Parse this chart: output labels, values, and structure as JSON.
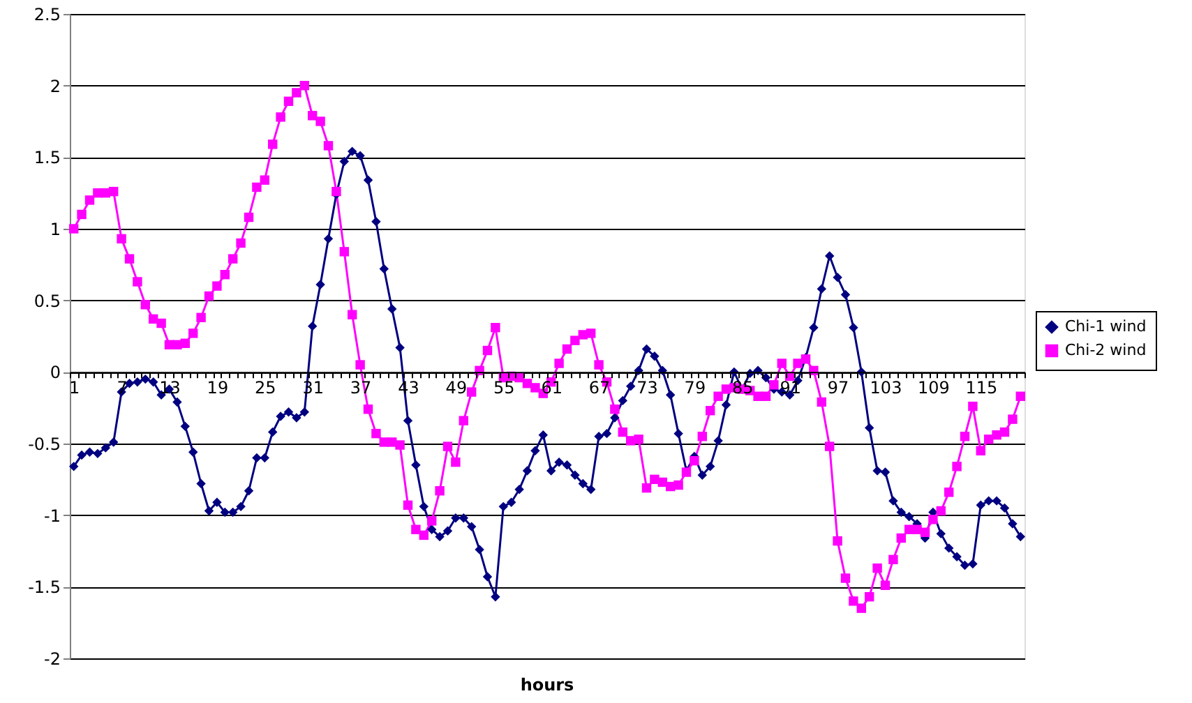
{
  "chart_data": {
    "type": "line",
    "xlabel": "hours",
    "categories": [
      "1",
      null,
      null,
      null,
      null,
      null,
      "7",
      null,
      null,
      null,
      null,
      null,
      "13",
      null,
      null,
      null,
      null,
      null,
      "19",
      null,
      null,
      null,
      null,
      null,
      "25",
      null,
      null,
      null,
      null,
      null,
      "31",
      null,
      null,
      null,
      null,
      null,
      "37",
      null,
      null,
      null,
      null,
      null,
      "43",
      null,
      null,
      null,
      null,
      null,
      "49",
      null,
      null,
      null,
      null,
      null,
      "55",
      null,
      null,
      null,
      null,
      null,
      "61",
      null,
      null,
      null,
      null,
      null,
      "67",
      null,
      null,
      null,
      null,
      null,
      "73",
      null,
      null,
      null,
      null,
      null,
      "79",
      null,
      null,
      null,
      null,
      null,
      "85",
      null,
      null,
      null,
      null,
      null,
      "91",
      null,
      null,
      null,
      null,
      null,
      "97",
      null,
      null,
      null,
      null,
      null,
      "103",
      null,
      null,
      null,
      null,
      null,
      "109",
      null,
      null,
      null,
      null,
      null,
      "115",
      null,
      null,
      null,
      null,
      null
    ],
    "series": [
      {
        "name": "Chi-1 wind",
        "color": "#000080",
        "marker": "diamond",
        "values": [
          -0.66,
          -0.58,
          -0.56,
          -0.57,
          -0.53,
          -0.49,
          -0.14,
          -0.08,
          -0.07,
          -0.05,
          -0.07,
          -0.16,
          -0.12,
          -0.21,
          -0.38,
          -0.56,
          -0.78,
          -0.97,
          -0.91,
          -0.98,
          -0.98,
          -0.94,
          -0.83,
          -0.6,
          -0.6,
          -0.42,
          -0.31,
          -0.28,
          -0.32,
          -0.28,
          0.32,
          0.61,
          0.93,
          1.24,
          1.47,
          1.54,
          1.51,
          1.34,
          1.05,
          0.72,
          0.44,
          0.17,
          -0.34,
          -0.65,
          -0.94,
          -1.1,
          -1.15,
          -1.11,
          -1.02,
          -1.02,
          -1.08,
          -1.24,
          -1.43,
          -1.57,
          -0.94,
          -0.91,
          -0.82,
          -0.69,
          -0.55,
          -0.44,
          -0.69,
          -0.63,
          -0.65,
          -0.72,
          -0.78,
          -0.82,
          -0.45,
          -0.43,
          -0.32,
          -0.2,
          -0.1,
          0.01,
          0.16,
          0.11,
          0.01,
          -0.16,
          -0.43,
          -0.69,
          -0.59,
          -0.72,
          -0.66,
          -0.48,
          -0.23,
          0.0,
          -0.12,
          -0.01,
          0.01,
          -0.04,
          -0.12,
          -0.14,
          -0.16,
          -0.06,
          0.1,
          0.31,
          0.58,
          0.81,
          0.66,
          0.54,
          0.31,
          0.0,
          -0.39,
          -0.69,
          -0.7,
          -0.9,
          -0.98,
          -1.01,
          -1.06,
          -1.16,
          -0.98,
          -1.13,
          -1.23,
          -1.29,
          -1.35,
          -1.34,
          -0.93,
          -0.9,
          -0.9,
          -0.95,
          -1.06,
          -1.15
        ]
      },
      {
        "name": "Chi-2 wind",
        "color": "#ff00ff",
        "marker": "square",
        "values": [
          1.0,
          1.1,
          1.2,
          1.25,
          1.25,
          1.26,
          0.93,
          0.79,
          0.63,
          0.47,
          0.37,
          0.34,
          0.19,
          0.19,
          0.2,
          0.27,
          0.38,
          0.53,
          0.6,
          0.68,
          0.79,
          0.9,
          1.08,
          1.29,
          1.34,
          1.59,
          1.78,
          1.89,
          1.95,
          2.0,
          1.79,
          1.75,
          1.58,
          1.26,
          0.84,
          0.4,
          0.05,
          -0.26,
          -0.43,
          -0.49,
          -0.49,
          -0.51,
          -0.93,
          -1.1,
          -1.14,
          -1.04,
          -0.83,
          -0.52,
          -0.63,
          -0.34,
          -0.14,
          0.01,
          0.15,
          0.31,
          -0.04,
          -0.03,
          -0.04,
          -0.08,
          -0.11,
          -0.15,
          -0.07,
          0.06,
          0.16,
          0.22,
          0.26,
          0.27,
          0.05,
          -0.07,
          -0.26,
          -0.42,
          -0.48,
          -0.47,
          -0.81,
          -0.75,
          -0.77,
          -0.8,
          -0.79,
          -0.7,
          -0.62,
          -0.45,
          -0.27,
          -0.17,
          -0.12,
          -0.11,
          -0.12,
          -0.13,
          -0.17,
          -0.17,
          -0.09,
          0.06,
          -0.03,
          0.06,
          0.09,
          0.01,
          -0.21,
          -0.52,
          -1.18,
          -1.44,
          -1.6,
          -1.65,
          -1.57,
          -1.37,
          -1.49,
          -1.31,
          -1.16,
          -1.1,
          -1.1,
          -1.12,
          -1.03,
          -0.97,
          -0.84,
          -0.66,
          -0.45,
          -0.24,
          -0.55,
          -0.47,
          -0.44,
          -0.42,
          -0.33,
          -0.17
        ]
      }
    ],
    "ylim": [
      -2,
      2.5
    ],
    "yticks": [
      -2,
      -1.5,
      -1,
      -0.5,
      0,
      0.5,
      1,
      1.5,
      2,
      2.5
    ],
    "grid": "y",
    "legend": "right",
    "line_style": "solid"
  }
}
